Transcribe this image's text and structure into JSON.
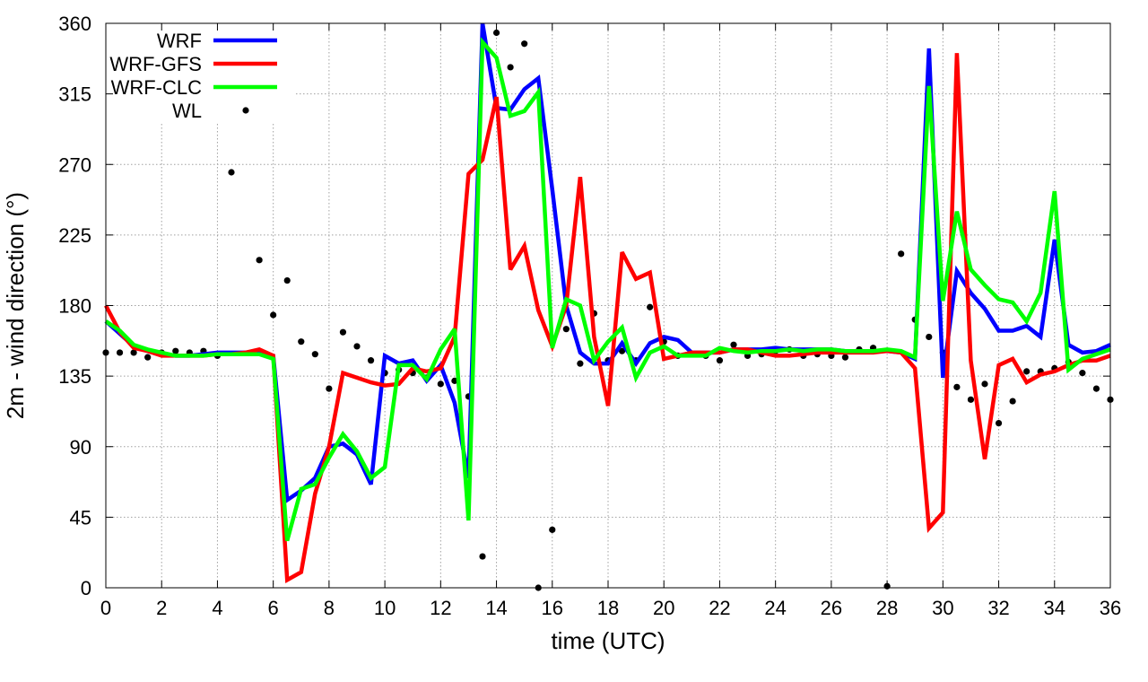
{
  "chart_data": {
    "type": "line",
    "title": "",
    "xlabel": "time (UTC)",
    "ylabel": "2m - wind direction (°)",
    "xlim": [
      0,
      36
    ],
    "ylim": [
      0,
      360
    ],
    "xticks": [
      0,
      2,
      4,
      6,
      8,
      10,
      12,
      14,
      16,
      18,
      20,
      22,
      24,
      26,
      28,
      30,
      32,
      34,
      36
    ],
    "yticks": [
      0,
      45,
      90,
      135,
      180,
      225,
      270,
      315,
      360
    ],
    "grid": true,
    "legend_position": "top-left",
    "x": [
      0,
      0.5,
      1,
      1.5,
      2,
      2.5,
      3,
      3.5,
      4,
      4.5,
      5,
      5.5,
      6,
      6.5,
      7,
      7.5,
      8,
      8.5,
      9,
      9.5,
      10,
      10.5,
      11,
      11.5,
      12,
      12.5,
      13,
      13.5,
      14,
      14.5,
      15,
      15.5,
      16,
      16.5,
      17,
      17.5,
      18,
      18.5,
      19,
      19.5,
      20,
      20.5,
      21,
      21.5,
      22,
      22.5,
      23,
      23.5,
      24,
      24.5,
      25,
      25.5,
      26,
      26.5,
      27,
      27.5,
      28,
      28.5,
      29,
      29.5,
      30,
      30.5,
      31,
      31.5,
      32,
      32.5,
      33,
      33.5,
      34,
      34.5,
      35,
      35.5,
      36
    ],
    "series": [
      {
        "name": "WRF",
        "style": "line",
        "color": "#0000ff",
        "values": [
          170,
          162,
          154,
          151,
          149,
          148,
          148,
          149,
          150,
          150,
          150,
          151,
          148,
          56,
          62,
          70,
          90,
          92,
          85,
          66,
          148,
          143,
          145,
          132,
          142,
          118,
          70,
          360,
          306,
          305,
          318,
          325,
          254,
          180,
          150,
          143,
          143,
          156,
          143,
          156,
          160,
          158,
          150,
          150,
          150,
          152,
          152,
          152,
          153,
          152,
          152,
          152,
          152,
          151,
          151,
          151,
          151,
          150,
          146,
          344,
          134,
          202,
          188,
          178,
          164,
          164,
          167,
          160,
          222,
          155,
          150,
          151,
          155
        ]
      },
      {
        "name": "WRF-GFS",
        "style": "line",
        "color": "#ff0000",
        "values": [
          180,
          163,
          153,
          151,
          148,
          148,
          148,
          148,
          149,
          149,
          150,
          152,
          148,
          5,
          10,
          60,
          90,
          137,
          134,
          131,
          129,
          130,
          140,
          138,
          140,
          160,
          264,
          273,
          313,
          203,
          218,
          177,
          154,
          180,
          262,
          160,
          116,
          214,
          197,
          201,
          146,
          148,
          150,
          150,
          150,
          152,
          152,
          150,
          148,
          148,
          149,
          150,
          150,
          150,
          150,
          150,
          151,
          150,
          140,
          38,
          48,
          341,
          145,
          82,
          142,
          146,
          131,
          136,
          138,
          142,
          145,
          145,
          148
        ]
      },
      {
        "name": "WRF-CLC",
        "style": "line",
        "color": "#00ff00",
        "values": [
          170,
          164,
          155,
          152,
          150,
          148,
          148,
          148,
          149,
          149,
          149,
          149,
          146,
          30,
          63,
          66,
          83,
          98,
          87,
          70,
          77,
          142,
          142,
          133,
          152,
          165,
          43,
          348,
          338,
          301,
          304,
          316,
          153,
          184,
          180,
          145,
          157,
          166,
          134,
          150,
          154,
          148,
          148,
          148,
          153,
          151,
          150,
          151,
          151,
          152,
          151,
          152,
          152,
          151,
          151,
          151,
          152,
          151,
          147,
          320,
          183,
          240,
          203,
          193,
          184,
          182,
          170,
          188,
          253,
          139,
          146,
          149,
          152
        ]
      },
      {
        "name": "WL",
        "style": "points",
        "color": "#000000",
        "values": [
          150,
          150,
          150,
          147,
          150,
          151,
          150,
          151,
          148,
          265,
          305,
          209,
          174,
          196,
          157,
          149,
          127,
          163,
          154,
          145,
          137,
          139,
          137,
          134,
          130,
          132,
          122,
          20,
          354,
          332,
          347,
          0,
          37,
          165,
          143,
          175,
          145,
          151,
          145,
          179,
          157,
          148,
          149,
          148,
          145,
          155,
          148,
          149,
          151,
          152,
          148,
          149,
          148,
          147,
          152,
          153,
          1,
          213,
          171,
          160,
          150,
          128,
          120,
          130,
          105,
          119,
          138,
          138,
          140,
          144,
          137,
          127,
          120
        ]
      }
    ]
  }
}
